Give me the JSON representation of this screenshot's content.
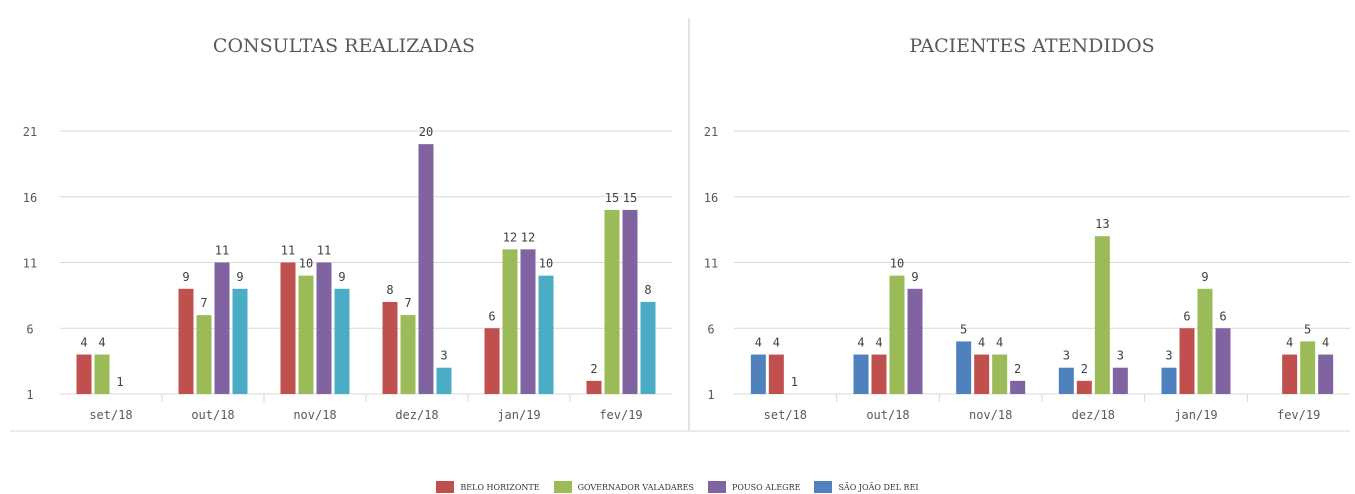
{
  "chart_data": [
    {
      "type": "bar",
      "title": "CONSULTAS REALIZADAS",
      "categories": [
        "set/18",
        "out/18",
        "nov/18",
        "dez/18",
        "jan/19",
        "fev/19"
      ],
      "ylim": [
        1,
        21
      ],
      "yticks": [
        1,
        6,
        11,
        16,
        21
      ],
      "grid": true,
      "series": [
        {
          "name": "BELO HORIZONTE",
          "color": "#c0504d",
          "values": [
            4,
            9,
            11,
            8,
            6,
            2
          ]
        },
        {
          "name": "GOVERNADOR VALADARES",
          "color": "#9bbb59",
          "values": [
            4,
            7,
            10,
            7,
            12,
            15
          ]
        },
        {
          "name": "POUSO ALEGRE",
          "color": "#8064a2",
          "values": [
            1,
            11,
            11,
            20,
            12,
            15
          ]
        },
        {
          "name": "SÃO JOÃO DEL REI",
          "color": "#4bacc6",
          "values": [
            null,
            9,
            9,
            3,
            10,
            8
          ]
        }
      ]
    },
    {
      "type": "bar",
      "title": "PACIENTES ATENDIDOS",
      "categories": [
        "set/18",
        "out/18",
        "nov/18",
        "dez/18",
        "jan/19",
        "fev/19"
      ],
      "ylim": [
        1,
        21
      ],
      "yticks": [
        1,
        6,
        11,
        16,
        21
      ],
      "grid": true,
      "series": [
        {
          "name": "SÃO JOÃO DEL REI",
          "color": "#4f81bd",
          "values": [
            4,
            4,
            5,
            3,
            3,
            null
          ]
        },
        {
          "name": "BELO HORIZONTE",
          "color": "#c0504d",
          "values": [
            4,
            4,
            4,
            2,
            6,
            4
          ]
        },
        {
          "name": "GOVERNADOR VALADARES",
          "color": "#9bbb59",
          "values": [
            1,
            10,
            4,
            13,
            9,
            5
          ]
        },
        {
          "name": "POUSO ALEGRE",
          "color": "#8064a2",
          "values": [
            null,
            9,
            2,
            3,
            6,
            4
          ]
        }
      ]
    }
  ],
  "legend": [
    {
      "label": "BELO HORIZONTE",
      "color": "#c0504d"
    },
    {
      "label": "GOVERNADOR VALADARES",
      "color": "#9bbb59"
    },
    {
      "label": "POUSO ALEGRE",
      "color": "#8064a2"
    },
    {
      "label": "SÃO JOÃO DEL REI",
      "color": "#4f81bd"
    }
  ],
  "legend_placement": "bottom-center"
}
